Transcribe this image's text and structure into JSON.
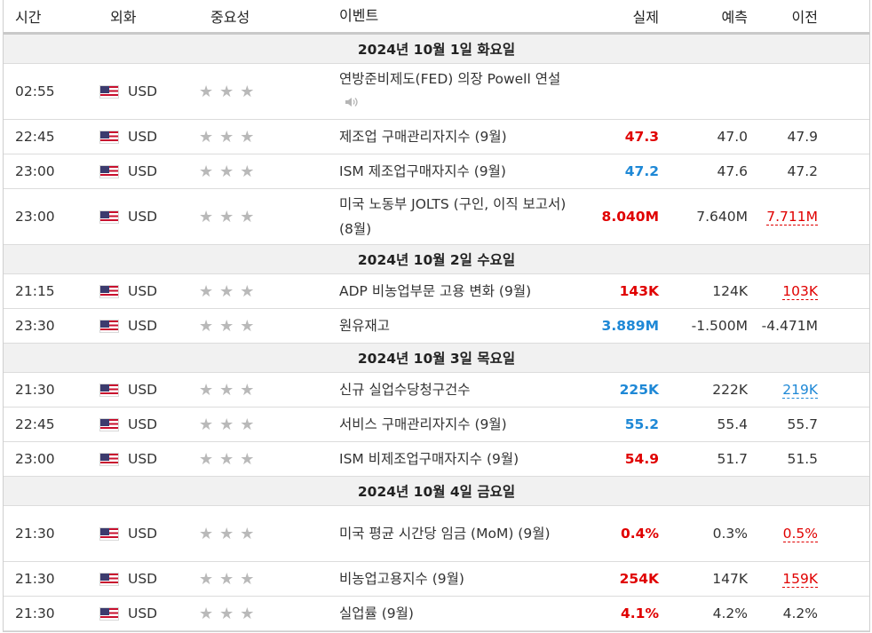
{
  "headers": {
    "time": "시간",
    "currency": "외화",
    "importance": "중요성",
    "event": "이벤트",
    "actual": "실제",
    "forecast": "예측",
    "previous": "이전"
  },
  "colors": {
    "beat": "#e00000",
    "miss": "#1e88d6",
    "day_bg": "#f1f1f1"
  },
  "days": [
    {
      "label": "2024년 10월 1일 화요일"
    },
    {
      "label": "2024년 10월 2일 수요일"
    },
    {
      "label": "2024년 10월 3일 목요일"
    },
    {
      "label": "2024년 10월 4일 금요일"
    }
  ],
  "rows": [
    {
      "time": "02:55",
      "currency": "USD",
      "stars": "★★★",
      "event": "연방준비제도(FED) 의장 Powell 연설",
      "actual": "",
      "forecast": "",
      "previous": ""
    },
    {
      "time": "22:45",
      "currency": "USD",
      "stars": "★★★",
      "event": "제조업 구매관리자지수 (9월)",
      "actual": "47.3",
      "forecast": "47.0",
      "previous": "47.9"
    },
    {
      "time": "23:00",
      "currency": "USD",
      "stars": "★★★",
      "event": "ISM 제조업구매자지수 (9월)",
      "actual": "47.2",
      "forecast": "47.6",
      "previous": "47.2"
    },
    {
      "time": "23:00",
      "currency": "USD",
      "stars": "★★★",
      "event": "미국 노동부 JOLTS (구인, 이직 보고서) (8월)",
      "actual": "8.040M",
      "forecast": "7.640M",
      "previous": "7.711M"
    },
    {
      "time": "21:15",
      "currency": "USD",
      "stars": "★★★",
      "event": "ADP 비농업부문 고용 변화 (9월)",
      "actual": "143K",
      "forecast": "124K",
      "previous": "103K"
    },
    {
      "time": "23:30",
      "currency": "USD",
      "stars": "★★★",
      "event": "원유재고",
      "actual": "3.889M",
      "forecast": "-1.500M",
      "previous": "-4.471M"
    },
    {
      "time": "21:30",
      "currency": "USD",
      "stars": "★★★",
      "event": "신규 실업수당청구건수",
      "actual": "225K",
      "forecast": "222K",
      "previous": "219K"
    },
    {
      "time": "22:45",
      "currency": "USD",
      "stars": "★★★",
      "event": "서비스 구매관리자지수 (9월)",
      "actual": "55.2",
      "forecast": "55.4",
      "previous": "55.7"
    },
    {
      "time": "23:00",
      "currency": "USD",
      "stars": "★★★",
      "event": "ISM 비제조업구매자지수 (9월)",
      "actual": "54.9",
      "forecast": "51.7",
      "previous": "51.5"
    },
    {
      "time": "21:30",
      "currency": "USD",
      "stars": "★★★",
      "event": "미국 평균 시간당 임금 (MoM) (9월)",
      "actual": "0.4%",
      "forecast": "0.3%",
      "previous": "0.5%"
    },
    {
      "time": "21:30",
      "currency": "USD",
      "stars": "★★★",
      "event": "비농업고용지수 (9월)",
      "actual": "254K",
      "forecast": "147K",
      "previous": "159K"
    },
    {
      "time": "21:30",
      "currency": "USD",
      "stars": "★★★",
      "event": "실업률 (9월)",
      "actual": "4.1%",
      "forecast": "4.2%",
      "previous": "4.2%"
    }
  ]
}
